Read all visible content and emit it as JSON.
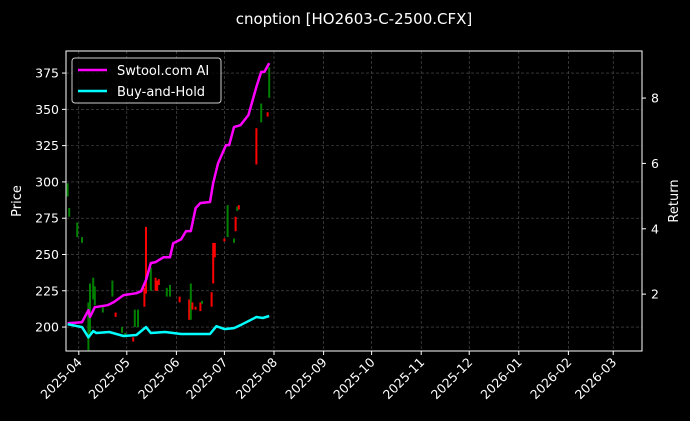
{
  "chart_data": {
    "type": "line",
    "title": "cnoption [HO2603-C-2500.CFX]",
    "xlabel": "",
    "ylabel": "Price",
    "y2label": "Return",
    "ylim": [
      183.5,
      390.2
    ],
    "y2lim": [
      0.26,
      9.44
    ],
    "xlim": [
      "2025-03-24",
      "2026-03-19"
    ],
    "grid": true,
    "legend_position": "top-left",
    "yticks": [
      200,
      225,
      250,
      275,
      300,
      325,
      350,
      375
    ],
    "y2ticks": [
      2,
      4,
      6,
      8
    ],
    "xticks": [
      "2025-04",
      "2025-05",
      "2025-06",
      "2025-07",
      "2025-08",
      "2025-09",
      "2025-10",
      "2025-11",
      "2025-12",
      "2026-01",
      "2026-02",
      "2026-03"
    ],
    "colors": {
      "up": "#008000",
      "down": "#ff0000",
      "strategy": "#ff00ff",
      "buyhold": "#00ffff",
      "grid": "#555555"
    },
    "series": [
      {
        "name": "Swtool.com AI",
        "axis": "right",
        "points": [
          [
            "2025-03-25",
            1.11
          ],
          [
            "2025-04-03",
            1.14
          ],
          [
            "2025-04-07",
            1.51
          ],
          [
            "2025-04-08",
            1.3
          ],
          [
            "2025-04-11",
            1.6
          ],
          [
            "2025-04-19",
            1.66
          ],
          [
            "2025-04-23",
            1.76
          ],
          [
            "2025-04-29",
            1.97
          ],
          [
            "2025-05-07",
            2.03
          ],
          [
            "2025-05-10",
            2.09
          ],
          [
            "2025-05-13",
            2.43
          ],
          [
            "2025-05-16",
            2.95
          ],
          [
            "2025-05-19",
            2.98
          ],
          [
            "2025-05-24",
            3.13
          ],
          [
            "2025-05-28",
            3.13
          ],
          [
            "2025-05-30",
            3.56
          ],
          [
            "2025-06-04",
            3.68
          ],
          [
            "2025-06-07",
            3.93
          ],
          [
            "2025-06-10",
            3.93
          ],
          [
            "2025-06-13",
            4.63
          ],
          [
            "2025-06-16",
            4.79
          ],
          [
            "2025-06-22",
            4.82
          ],
          [
            "2025-06-24",
            5.4
          ],
          [
            "2025-06-27",
            6.0
          ],
          [
            "2025-07-02",
            6.56
          ],
          [
            "2025-07-04",
            6.56
          ],
          [
            "2025-07-07",
            7.11
          ],
          [
            "2025-07-11",
            7.17
          ],
          [
            "2025-07-16",
            7.48
          ],
          [
            "2025-07-21",
            8.34
          ],
          [
            "2025-07-24",
            8.8
          ],
          [
            "2025-07-26",
            8.8
          ],
          [
            "2025-07-29",
            9.07
          ]
        ]
      },
      {
        "name": "Buy-and-Hold",
        "axis": "right",
        "points": [
          [
            "2025-03-25",
            1.08
          ],
          [
            "2025-04-03",
            0.99
          ],
          [
            "2025-04-07",
            0.68
          ],
          [
            "2025-04-10",
            0.87
          ],
          [
            "2025-04-12",
            0.81
          ],
          [
            "2025-04-20",
            0.84
          ],
          [
            "2025-04-29",
            0.72
          ],
          [
            "2025-05-07",
            0.75
          ],
          [
            "2025-05-13",
            0.99
          ],
          [
            "2025-05-16",
            0.81
          ],
          [
            "2025-05-25",
            0.84
          ],
          [
            "2025-06-04",
            0.78
          ],
          [
            "2025-06-22",
            0.78
          ],
          [
            "2025-06-26",
            1.02
          ],
          [
            "2025-07-01",
            0.93
          ],
          [
            "2025-07-07",
            0.96
          ],
          [
            "2025-07-11",
            1.05
          ],
          [
            "2025-07-21",
            1.3
          ],
          [
            "2025-07-25",
            1.27
          ],
          [
            "2025-07-29",
            1.33
          ]
        ]
      }
    ],
    "candles": [
      [
        "2025-03-25",
        290,
        299,
        true
      ],
      [
        "2025-03-26",
        276,
        282,
        true
      ],
      [
        "2025-03-31",
        262,
        272,
        true
      ],
      [
        "2025-04-03",
        258,
        262,
        true
      ],
      [
        "2025-04-07",
        184,
        217,
        true
      ],
      [
        "2025-04-08",
        196,
        230,
        true
      ],
      [
        "2025-04-10",
        219,
        234,
        true
      ],
      [
        "2025-04-11",
        215,
        228,
        true
      ],
      [
        "2025-04-16",
        210,
        214,
        true
      ],
      [
        "2025-04-22",
        221,
        232,
        true
      ],
      [
        "2025-04-24",
        207,
        210,
        false
      ],
      [
        "2025-04-28",
        196,
        200,
        true
      ],
      [
        "2025-04-30",
        193,
        196,
        true
      ],
      [
        "2025-05-05",
        190,
        193,
        false
      ],
      [
        "2025-05-06",
        200,
        212,
        true
      ],
      [
        "2025-05-08",
        200,
        212,
        true
      ],
      [
        "2025-05-12",
        214,
        227,
        false
      ],
      [
        "2025-05-13",
        223,
        269,
        false
      ],
      [
        "2025-05-16",
        225,
        241,
        true
      ],
      [
        "2025-05-19",
        225,
        234,
        false
      ],
      [
        "2025-05-20",
        225,
        232,
        false
      ],
      [
        "2025-05-21",
        229,
        233,
        false
      ],
      [
        "2025-05-26",
        221,
        227,
        true
      ],
      [
        "2025-05-28",
        221,
        229,
        true
      ],
      [
        "2025-06-03",
        217,
        221,
        false
      ],
      [
        "2025-06-09",
        205,
        219,
        false
      ],
      [
        "2025-06-10",
        205,
        230,
        true
      ],
      [
        "2025-06-11",
        212,
        217,
        false
      ],
      [
        "2025-06-13",
        212,
        214,
        false
      ],
      [
        "2025-06-16",
        211,
        217,
        false
      ],
      [
        "2025-06-17",
        216,
        218,
        true
      ],
      [
        "2025-06-23",
        214,
        224,
        false
      ],
      [
        "2025-06-24",
        230,
        258,
        false
      ],
      [
        "2025-06-25",
        248,
        258,
        false
      ],
      [
        "2025-07-01",
        259,
        261,
        false
      ],
      [
        "2025-07-03",
        262,
        284,
        true
      ],
      [
        "2025-07-07",
        258,
        261,
        true
      ],
      [
        "2025-07-08",
        266,
        276,
        false
      ],
      [
        "2025-07-09",
        280,
        283,
        true
      ],
      [
        "2025-07-10",
        281,
        284,
        false
      ],
      [
        "2025-07-21",
        312,
        337,
        false
      ],
      [
        "2025-07-24",
        341,
        354,
        true
      ],
      [
        "2025-07-28",
        345,
        348,
        false
      ],
      [
        "2025-07-29",
        358,
        379,
        true
      ]
    ]
  }
}
